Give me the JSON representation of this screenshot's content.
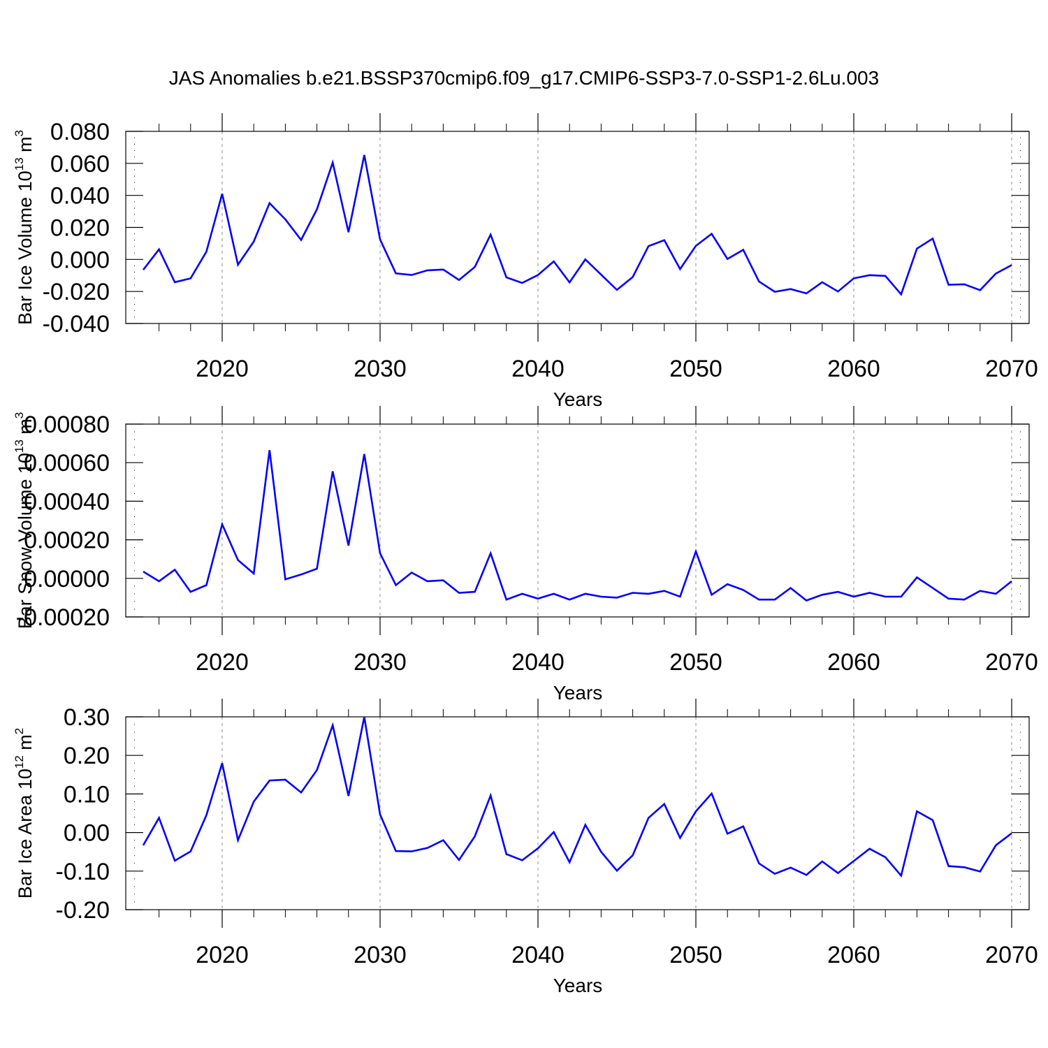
{
  "title": "JAS Anomalies b.e21.BSSP370cmip6.f09_g17.CMIP6-SSP3-7.0-SSP1-2.6Lu.003",
  "colors": {
    "line": "#0000ff",
    "axis": "#000000",
    "grid": "#8c8c8c"
  },
  "chart_data": [
    {
      "type": "line",
      "xlabel": "Years",
      "ylabel": "Bar Ice Volume 10",
      "ylabel_exponent": "13",
      "ylabel_unit": " m",
      "ylabel_unit_exponent": "3",
      "xlim": [
        2015,
        2070
      ],
      "ylim": [
        -0.04,
        0.08
      ],
      "yticks": [
        "0.080",
        "0.060",
        "0.040",
        "0.020",
        "0.000",
        "-0.020",
        "-0.040"
      ],
      "ytick_values": [
        0.08,
        0.06,
        0.04,
        0.02,
        0.0,
        -0.02,
        -0.04
      ],
      "xticks": [
        "2020",
        "2030",
        "2040",
        "2050",
        "2060",
        "2070"
      ],
      "xtick_values": [
        2020,
        2030,
        2040,
        2050,
        2060,
        2070
      ],
      "vertical_grid": true,
      "x": [
        2015,
        2016,
        2017,
        2018,
        2019,
        2020,
        2021,
        2022,
        2023,
        2024,
        2025,
        2026,
        2027,
        2028,
        2029,
        2030,
        2031,
        2032,
        2033,
        2034,
        2035,
        2036,
        2037,
        2038,
        2039,
        2040,
        2041,
        2042,
        2043,
        2044,
        2045,
        2046,
        2047,
        2048,
        2049,
        2050,
        2051,
        2052,
        2053,
        2054,
        2055,
        2056,
        2057,
        2058,
        2059,
        2060,
        2061,
        2062,
        2063,
        2064,
        2065,
        2066,
        2067,
        2068,
        2069,
        2070
      ],
      "values": [
        -0.0065,
        0.0063,
        -0.0142,
        -0.0118,
        0.0048,
        0.041,
        -0.0033,
        0.0112,
        0.0352,
        0.025,
        0.0122,
        0.0313,
        0.0605,
        0.017,
        0.0652,
        0.0125,
        -0.0087,
        -0.0097,
        -0.0068,
        -0.0063,
        -0.0128,
        -0.0047,
        0.0155,
        -0.0112,
        -0.0147,
        -0.0097,
        -0.0012,
        -0.0143,
        0.0,
        -0.0095,
        -0.019,
        -0.011,
        0.0083,
        0.012,
        -0.006,
        0.0085,
        0.016,
        0.0003,
        0.006,
        -0.0138,
        -0.0202,
        -0.0185,
        -0.0212,
        -0.0142,
        -0.02,
        -0.0118,
        -0.0098,
        -0.0103,
        -0.0218,
        0.0068,
        0.013,
        -0.0158,
        -0.0155,
        -0.0192,
        -0.0088,
        -0.0035
      ]
    },
    {
      "type": "line",
      "xlabel": "Years",
      "ylabel": "Bar Snow Volume 10",
      "ylabel_exponent": "13",
      "ylabel_unit": " m",
      "ylabel_unit_exponent": "3",
      "xlim": [
        2015,
        2070
      ],
      "ylim": [
        -0.0002,
        0.0008
      ],
      "yticks": [
        "0.00080",
        "0.00060",
        "0.00040",
        "0.00020",
        "0.00000",
        "-0.00020"
      ],
      "ytick_values": [
        0.0008,
        0.0006,
        0.0004,
        0.0002,
        0.0,
        -0.0002
      ],
      "xticks": [
        "2020",
        "2030",
        "2040",
        "2050",
        "2060",
        "2070"
      ],
      "xtick_values": [
        2020,
        2030,
        2040,
        2050,
        2060,
        2070
      ],
      "vertical_grid": true,
      "x": [
        2015,
        2016,
        2017,
        2018,
        2019,
        2020,
        2021,
        2022,
        2023,
        2024,
        2025,
        2026,
        2027,
        2028,
        2029,
        2030,
        2031,
        2032,
        2033,
        2034,
        2035,
        2036,
        2037,
        2038,
        2039,
        2040,
        2041,
        2042,
        2043,
        2044,
        2045,
        2046,
        2047,
        2048,
        2049,
        2050,
        2051,
        2052,
        2053,
        2054,
        2055,
        2056,
        2057,
        2058,
        2059,
        2060,
        2061,
        2062,
        2063,
        2064,
        2065,
        2066,
        2067,
        2068,
        2069,
        2070
      ],
      "values": [
        3.5e-05,
        -1.5e-05,
        4.5e-05,
        -7e-05,
        -3.5e-05,
        0.00028,
        9.5e-05,
        2.5e-05,
        0.000665,
        -5e-06,
        2e-05,
        5e-05,
        0.000555,
        0.00017,
        0.000645,
        0.00013,
        -3.5e-05,
        3e-05,
        -1.5e-05,
        -1e-05,
        -7.5e-05,
        -7e-05,
        0.00013,
        -0.00011,
        -8e-05,
        -0.000105,
        -8e-05,
        -0.00011,
        -8e-05,
        -9.5e-05,
        -0.0001,
        -7.5e-05,
        -8e-05,
        -6.5e-05,
        -9.5e-05,
        0.00014,
        -8.5e-05,
        -3e-05,
        -6e-05,
        -0.00011,
        -0.00011,
        -5e-05,
        -0.000115,
        -8.5e-05,
        -7e-05,
        -9.5e-05,
        -7.5e-05,
        -9.5e-05,
        -9.5e-05,
        5e-06,
        -5e-05,
        -0.000105,
        -0.00011,
        -6.5e-05,
        -8e-05,
        -1.5e-05
      ]
    },
    {
      "type": "line",
      "xlabel": "Years",
      "ylabel": "Bar Ice Area 10",
      "ylabel_exponent": "12",
      "ylabel_unit": " m",
      "ylabel_unit_exponent": "2",
      "xlim": [
        2015,
        2070
      ],
      "ylim": [
        -0.2,
        0.3
      ],
      "yticks": [
        "0.30",
        "0.20",
        "0.10",
        "0.00",
        "-0.10",
        "-0.20"
      ],
      "ytick_values": [
        0.3,
        0.2,
        0.1,
        0.0,
        -0.1,
        -0.2
      ],
      "xticks": [
        "2020",
        "2030",
        "2040",
        "2050",
        "2060",
        "2070"
      ],
      "xtick_values": [
        2020,
        2030,
        2040,
        2050,
        2060,
        2070
      ],
      "vertical_grid": true,
      "x": [
        2015,
        2016,
        2017,
        2018,
        2019,
        2020,
        2021,
        2022,
        2023,
        2024,
        2025,
        2026,
        2027,
        2028,
        2029,
        2030,
        2031,
        2032,
        2033,
        2034,
        2035,
        2036,
        2037,
        2038,
        2039,
        2040,
        2041,
        2042,
        2043,
        2044,
        2045,
        2046,
        2047,
        2048,
        2049,
        2050,
        2051,
        2052,
        2053,
        2054,
        2055,
        2056,
        2057,
        2058,
        2059,
        2060,
        2061,
        2062,
        2063,
        2064,
        2065,
        2066,
        2067,
        2068,
        2069,
        2070
      ],
      "values": [
        -0.033,
        0.038,
        -0.073,
        -0.049,
        0.045,
        0.18,
        -0.02,
        0.08,
        0.135,
        0.137,
        0.104,
        0.162,
        0.278,
        0.095,
        0.3,
        0.047,
        -0.048,
        -0.049,
        -0.04,
        -0.02,
        -0.071,
        -0.01,
        0.096,
        -0.056,
        -0.072,
        -0.041,
        0.001,
        -0.077,
        0.02,
        -0.05,
        -0.099,
        -0.059,
        0.038,
        0.074,
        -0.014,
        0.055,
        0.101,
        -0.003,
        0.016,
        -0.08,
        -0.107,
        -0.091,
        -0.11,
        -0.075,
        -0.105,
        -0.074,
        -0.042,
        -0.064,
        -0.112,
        0.055,
        0.032,
        -0.087,
        -0.09,
        -0.101,
        -0.033,
        -0.002
      ]
    }
  ]
}
